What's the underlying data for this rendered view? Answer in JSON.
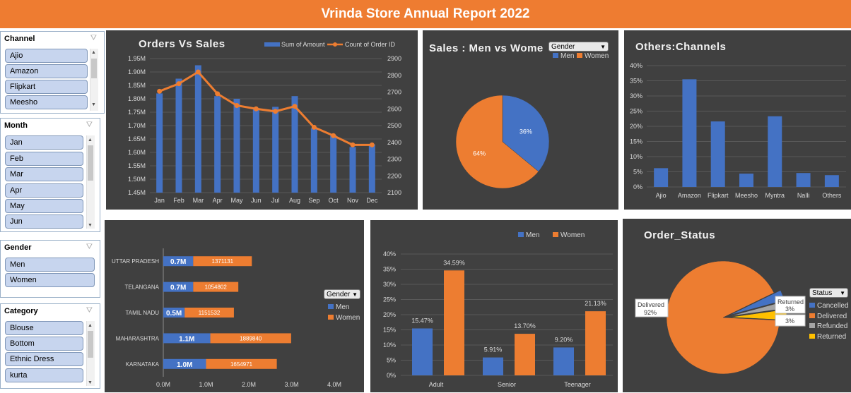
{
  "header": {
    "title": "Vrinda Store Annual Report 2022",
    "accent": "#ee7c31"
  },
  "slicers": {
    "channel": {
      "title": "Channel",
      "items": [
        "Ajio",
        "Amazon",
        "Flipkart",
        "Meesho"
      ]
    },
    "month": {
      "title": "Month",
      "items": [
        "Jan",
        "Feb",
        "Mar",
        "Apr",
        "May",
        "Jun"
      ]
    },
    "gender": {
      "title": "Gender",
      "items": [
        "Men",
        "Women"
      ]
    },
    "category": {
      "title": "Category",
      "items": [
        "Blouse",
        "Bottom",
        "Ethnic Dress",
        "kurta"
      ]
    },
    "filter_icon": "clear-filter-icon"
  },
  "colors": {
    "blue": "#4472c4",
    "orange": "#ed7d31",
    "gray": "#a5a5a5",
    "yellow": "#ffc000",
    "panel": "#404040"
  },
  "chart_data": [
    {
      "id": "orders_vs_sales",
      "type": "bar",
      "title": "Orders Vs Sales",
      "categories": [
        "Jan",
        "Feb",
        "Mar",
        "Apr",
        "May",
        "Jun",
        "Jul",
        "Aug",
        "Sep",
        "Oct",
        "Nov",
        "Dec"
      ],
      "series": [
        {
          "name": "Sum of Amount",
          "type": "bar",
          "axis": "left",
          "values": [
            1.82,
            1.875,
            1.925,
            1.81,
            1.8,
            1.765,
            1.77,
            1.81,
            1.69,
            1.665,
            1.62,
            1.63
          ]
        },
        {
          "name": "Count of Order ID",
          "type": "line",
          "axis": "right",
          "values": [
            2705,
            2750,
            2820,
            2690,
            2620,
            2600,
            2585,
            2615,
            2490,
            2440,
            2385,
            2385
          ]
        }
      ],
      "ylim_left": [
        1.45,
        1.95
      ],
      "yticks_left": [
        "1.45M",
        "1.50M",
        "1.55M",
        "1.60M",
        "1.65M",
        "1.70M",
        "1.75M",
        "1.80M",
        "1.85M",
        "1.90M",
        "1.95M"
      ],
      "ylim_right": [
        2100,
        2900
      ],
      "yticks_right": [
        "2100",
        "2200",
        "2300",
        "2400",
        "2500",
        "2600",
        "2700",
        "2800",
        "2900"
      ],
      "legend": "top-right"
    },
    {
      "id": "sales_men_women",
      "type": "pie",
      "title": "Sales : Men vs Wome",
      "legend_title": "Gender",
      "slices": [
        {
          "name": "Men",
          "value": 36,
          "label": "36%"
        },
        {
          "name": "Women",
          "value": 64,
          "label": "64%"
        }
      ],
      "legend": "top-right"
    },
    {
      "id": "others_channels",
      "type": "bar",
      "title": "Others:Channels",
      "categories": [
        "Ajio",
        "Amazon",
        "Flipkart",
        "Meesho",
        "Myntra",
        "Nalli",
        "Others"
      ],
      "values": [
        6.2,
        35.5,
        21.6,
        4.4,
        23.3,
        4.6,
        3.9
      ],
      "ylim": [
        0,
        40
      ],
      "yticks": [
        "0%",
        "5%",
        "10%",
        "15%",
        "20%",
        "25%",
        "30%",
        "35%",
        "40%"
      ]
    },
    {
      "id": "top_states",
      "type": "bar",
      "orientation": "horizontal",
      "categories": [
        "UTTAR PRADESH",
        "TELANGANA",
        "TAMIL NADU",
        "MAHARASHTRA",
        "KARNATAKA"
      ],
      "series": [
        {
          "name": "Men",
          "values": [
            0.7,
            0.7,
            0.5,
            1.1,
            1.0
          ],
          "labels": [
            "0.7M",
            "0.7M",
            "0.5M",
            "1.1M",
            "1.0M"
          ]
        },
        {
          "name": "Women",
          "values": [
            1.371131,
            1.054802,
            1.151532,
            1.88984,
            1.654971
          ],
          "labels": [
            "1371131",
            "1054802",
            "1151532",
            "1889840",
            "1654971"
          ]
        }
      ],
      "xlim": [
        0,
        4.0
      ],
      "xticks": [
        "0.0M",
        "1.0M",
        "2.0M",
        "3.0M",
        "4.0M"
      ],
      "legend_title": "Gender",
      "legend": "right"
    },
    {
      "id": "age_group_gender",
      "type": "bar",
      "categories": [
        "Adult",
        "Senior",
        "Teenager"
      ],
      "series": [
        {
          "name": "Men",
          "values": [
            15.47,
            5.91,
            9.2
          ],
          "labels": [
            "15.47%",
            "5.91%",
            "9.20%"
          ]
        },
        {
          "name": "Women",
          "values": [
            34.59,
            13.7,
            21.13
          ],
          "labels": [
            "34.59%",
            "13.70%",
            "21.13%"
          ]
        }
      ],
      "ylim": [
        0,
        40
      ],
      "yticks": [
        "0%",
        "5%",
        "10%",
        "15%",
        "20%",
        "25%",
        "30%",
        "35%",
        "40%"
      ],
      "legend": "top"
    },
    {
      "id": "order_status",
      "type": "pie",
      "title": "Order_Status",
      "legend_title": "Status",
      "slices": [
        {
          "name": "Cancelled",
          "value": 3
        },
        {
          "name": "Delivered",
          "value": 92,
          "label": "Delivered\n92%"
        },
        {
          "name": "Refunded",
          "value": 2
        },
        {
          "name": "Returned",
          "value": 3,
          "label": "Returned\n3%"
        }
      ],
      "extra_labels": [
        "3%",
        "Cancelled"
      ],
      "legend": "right"
    }
  ]
}
